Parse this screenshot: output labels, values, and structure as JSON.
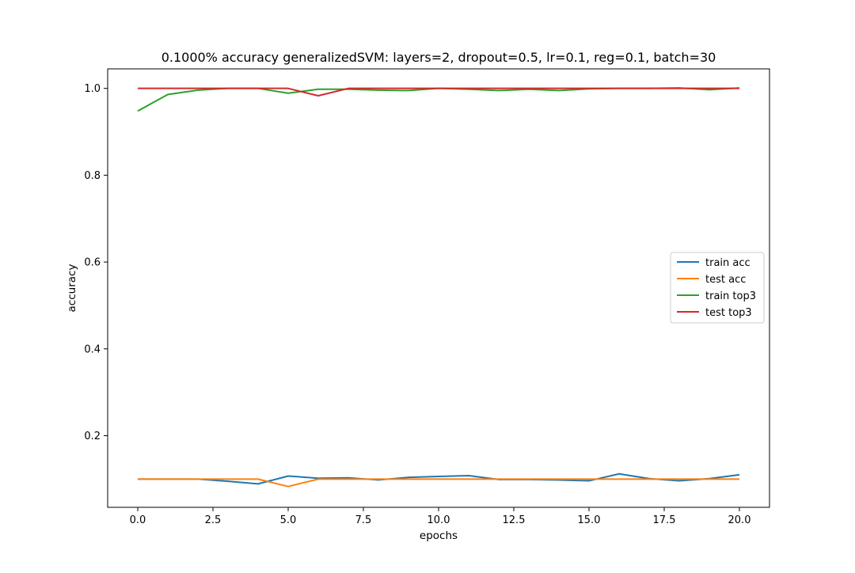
{
  "chart_data": {
    "type": "line",
    "title": "0.1000% accuracy generalizedSVM: layers=2, dropout=0.5, lr=0.1, reg=0.1, batch=30",
    "xlabel": "epochs",
    "ylabel": "accuracy",
    "xlim": [
      -1.0,
      21.0
    ],
    "ylim": [
      0.035,
      1.045
    ],
    "x_ticks": [
      0.0,
      2.5,
      5.0,
      7.5,
      10.0,
      12.5,
      15.0,
      17.5,
      20.0
    ],
    "x_tick_labels": [
      "0.0",
      "2.5",
      "5.0",
      "7.5",
      "10.0",
      "12.5",
      "15.0",
      "17.5",
      "20.0"
    ],
    "y_ticks": [
      0.2,
      0.4,
      0.6,
      0.8,
      1.0
    ],
    "y_tick_labels": [
      "0.2",
      "0.4",
      "0.6",
      "0.8",
      "1.0"
    ],
    "grid": false,
    "legend_position": "center-right",
    "x": [
      0,
      1,
      2,
      3,
      4,
      5,
      6,
      7,
      8,
      9,
      10,
      11,
      12,
      13,
      14,
      15,
      16,
      17,
      18,
      19,
      20
    ],
    "series": [
      {
        "name": "train acc",
        "color": "#1f77b4",
        "values": [
          0.1,
          0.1,
          0.1,
          0.095,
          0.089,
          0.107,
          0.102,
          0.103,
          0.098,
          0.104,
          0.106,
          0.108,
          0.099,
          0.099,
          0.098,
          0.096,
          0.112,
          0.101,
          0.096,
          0.101,
          0.11
        ]
      },
      {
        "name": "test acc",
        "color": "#ff7f0e",
        "values": [
          0.1,
          0.1,
          0.1,
          0.1,
          0.1,
          0.083,
          0.1,
          0.1,
          0.1,
          0.1,
          0.1,
          0.1,
          0.1,
          0.1,
          0.1,
          0.1,
          0.1,
          0.1,
          0.1,
          0.1,
          0.1
        ]
      },
      {
        "name": "train top3",
        "color": "#2ca02c",
        "values": [
          0.948,
          0.986,
          0.996,
          1.0,
          1.0,
          0.989,
          0.998,
          0.998,
          0.996,
          0.995,
          1.0,
          0.998,
          0.995,
          0.998,
          0.995,
          0.999,
          1.0,
          1.0,
          1.001,
          0.997,
          1.001
        ]
      },
      {
        "name": "test top3",
        "color": "#d62728",
        "values": [
          1.0,
          1.0,
          1.0,
          1.0,
          1.0,
          1.0,
          0.983,
          1.0,
          1.0,
          1.0,
          1.0,
          1.0,
          1.0,
          1.0,
          1.0,
          1.0,
          1.0,
          1.0,
          1.0,
          1.0,
          1.0
        ]
      }
    ]
  }
}
